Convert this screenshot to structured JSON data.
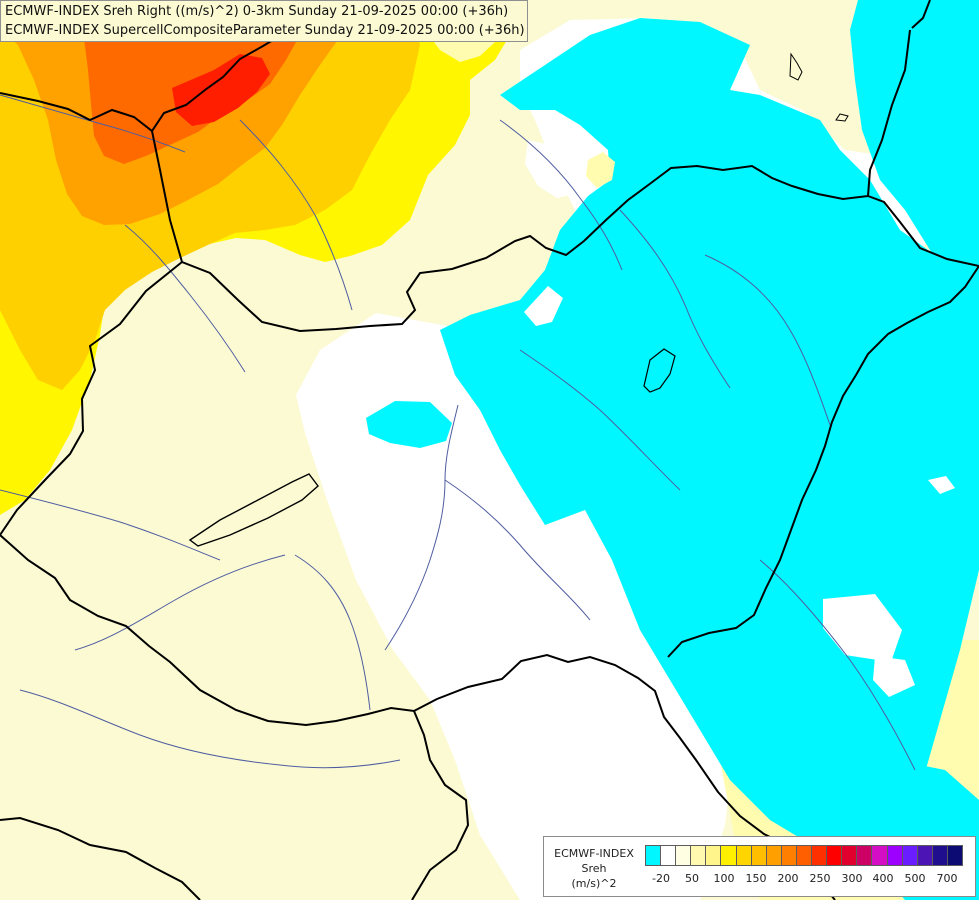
{
  "header": {
    "title_line_1": "ECMWF-INDEX Sreh Right ((m/s)^2) 0-3km Sunday 21-09-2025 00:00 (+36h)",
    "title_line_2": "ECMWF-INDEX SupercellCompositeParameter Sunday 21-09-2025 00:00 (+36h)"
  },
  "legend": {
    "line_1": "ECMWF-INDEX",
    "line_2": "Sreh",
    "line_3": "(m/s)^2",
    "labels": {
      "l0": "-20",
      "l1": "50",
      "l2": "100",
      "l3": "150",
      "l4": "200",
      "l5": "250",
      "l6": "300",
      "l7": "400",
      "l8": "500",
      "l9": "700"
    }
  },
  "colors": {
    "background": "#fbfad3",
    "cyan": "#00f7ff",
    "white": "#ffffff",
    "pale_yellow": "#fffcb0",
    "yellow": "#fff600",
    "golden": "#ffd000",
    "orange": "#ffa200",
    "deep_orange": "#ff6a00",
    "red": "#ff1e00",
    "border": "#000000",
    "river": "#4f5da0"
  }
}
